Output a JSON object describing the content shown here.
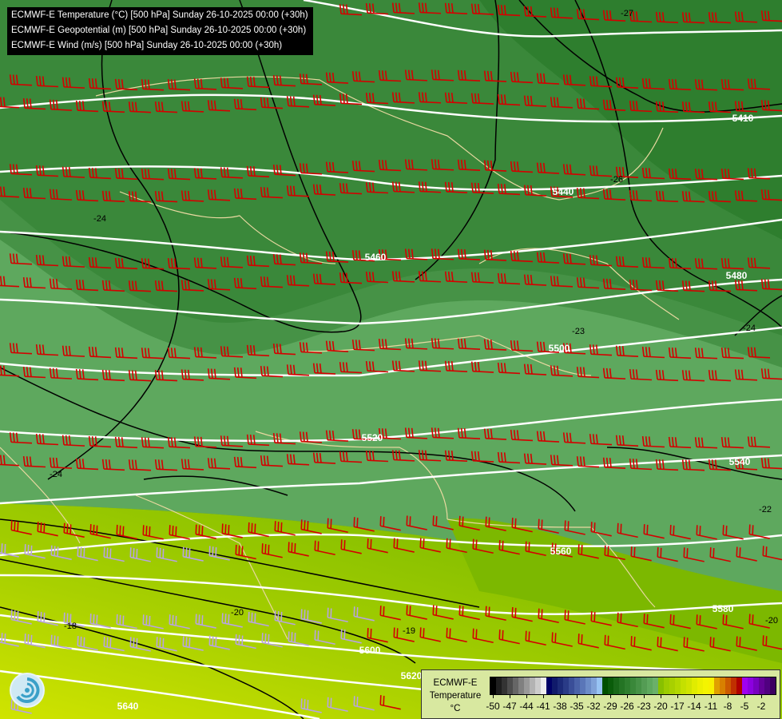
{
  "header": {
    "lines": [
      "ECMWF-E Temperature (°C) [500 hPa] Sunday 26-10-2025 00:00 (+30h)",
      "ECMWF-E Geopotential (m) [500 hPa] Sunday 26-10-2025 00:00 (+30h)",
      "ECMWF-E Wind (m/s) [500 hPa] Sunday 26-10-2025 00:00 (+30h)"
    ]
  },
  "legend": {
    "title_line1": "ECMWF-E",
    "title_line2": "Temperature",
    "unit": "°C",
    "min": -50,
    "max": 0,
    "tick_labels": [
      "-50",
      "-47",
      "-44",
      "-41",
      "-38",
      "-35",
      "-32",
      "-29",
      "-26",
      "-23",
      "-20",
      "-17",
      "-14",
      "-11",
      "-8",
      "-5",
      "-2"
    ],
    "colors": [
      "#000000",
      "#1e1e1e",
      "#333333",
      "#4d4d4d",
      "#666666",
      "#808080",
      "#999999",
      "#b3b3b3",
      "#cccccc",
      "#eeeeee",
      "#000066",
      "#101a6b",
      "#1c2a78",
      "#2a3b87",
      "#3a4e98",
      "#4a62a8",
      "#5a76b8",
      "#6c8cc8",
      "#80a2d8",
      "#98c4f4",
      "#005000",
      "#0a5c0a",
      "#186818",
      "#247424",
      "#2e7e2e",
      "#3a883a",
      "#469246",
      "#549c54",
      "#5ea85e",
      "#6ab06a",
      "#88c000",
      "#9ccc00",
      "#a8d000",
      "#b4d800",
      "#c4e000",
      "#d0e400",
      "#e0ec00",
      "#ecf000",
      "#f4f400",
      "#f8f000",
      "#e0a000",
      "#d88000",
      "#cc5a00",
      "#c03000",
      "#b00000",
      "#a000f0",
      "#8c00e0",
      "#7800c0",
      "#640098",
      "#500080",
      "#3c0060"
    ]
  },
  "map": {
    "geopotential_labels": [
      "5410",
      "5440",
      "5460",
      "5480",
      "5500",
      "5520",
      "5540",
      "5560",
      "5580",
      "5600",
      "5620",
      "5640"
    ],
    "temperature_labels": [
      "-27",
      "-26",
      "-24",
      "-23",
      "-24",
      "-24",
      "-22",
      "-20",
      "-18",
      "-19",
      "-20"
    ],
    "wind_barb_colors": {
      "strong": "#d40000",
      "weak": "#b8a4e0"
    }
  }
}
